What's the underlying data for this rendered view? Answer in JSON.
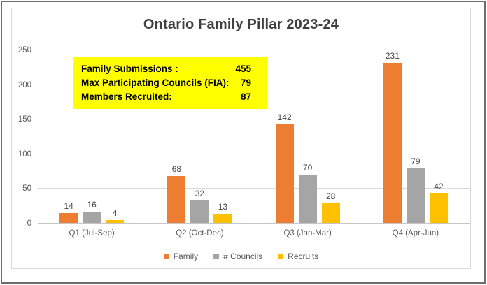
{
  "chart_data": {
    "type": "bar",
    "title": "Ontario Family Pillar 2023-24",
    "categories": [
      "Q1 (Jul-Sep)",
      "Q2 (Oct-Dec)",
      "Q3 (Jan-Mar)",
      "Q4 (Apr-Jun)"
    ],
    "series": [
      {
        "name": "Family",
        "color": "#ED7D31",
        "values": [
          14,
          68,
          142,
          231
        ]
      },
      {
        "name": "# Councils",
        "color": "#A5A5A5",
        "values": [
          16,
          32,
          70,
          79
        ]
      },
      {
        "name": "Recruits",
        "color": "#FFC000",
        "values": [
          4,
          13,
          28,
          42
        ]
      }
    ],
    "ylim": [
      0,
      250
    ],
    "yticks": [
      0,
      50,
      100,
      150,
      200,
      250
    ],
    "grid": true,
    "data_labels": true,
    "legend_position": "bottom",
    "xlabel": "",
    "ylabel": ""
  },
  "annotation_box": {
    "background": "#FFFF00",
    "rows": [
      {
        "label": "Family Submissions :",
        "value": "455"
      },
      {
        "label": "Max Participating Councils (FIA):",
        "value": "79"
      },
      {
        "label": "Members Recruited:",
        "value": "87"
      }
    ]
  },
  "style_colors": {
    "outer_border": "#6E6E6E",
    "inner_border": "#D9D9D9",
    "gridline": "#D9D9D9",
    "title_text": "#3F3F3F",
    "axis_text": "#595959"
  }
}
